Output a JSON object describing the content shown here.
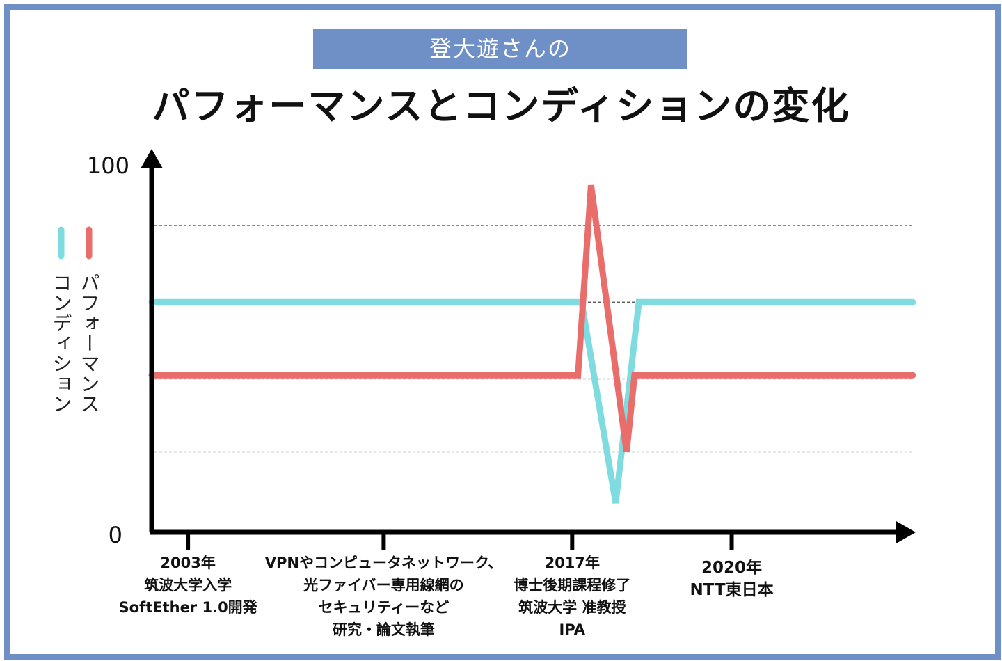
{
  "subtitle": "登大遊さんの",
  "title": "パフォーマンスとコンディションの変化",
  "chart_data": {
    "type": "line",
    "ylim": [
      0,
      100
    ],
    "y_tick_labels": [
      "0",
      "100"
    ],
    "grid": "dashed horizontal lines at 22, 42, 63, 84",
    "x_labels": [
      {
        "lines": [
          "2003年",
          "筑波大学入学",
          "SoftEther 1.0開発"
        ]
      },
      {
        "lines": [
          "VPNやコンピュータネットワーク、",
          "光ファイバー専用線網の",
          "セキュリティーなど",
          "研究・論文執筆"
        ]
      },
      {
        "lines": [
          "2017年",
          "博士後期課程修了",
          "筑波大学 准教授",
          "IPA"
        ]
      },
      {
        "lines": [
          "2020年",
          "NTT東日本"
        ]
      }
    ],
    "x_ticks": [
      0.5,
      3.2,
      5.8,
      8.0
    ],
    "xlim": [
      0,
      10.5
    ],
    "series": [
      {
        "name": "コンディション",
        "color": "#7edbe0",
        "points": [
          [
            0,
            63
          ],
          [
            5.93,
            63
          ],
          [
            6.4,
            8
          ],
          [
            6.72,
            63
          ],
          [
            10.5,
            63
          ]
        ]
      },
      {
        "name": "パフォーマンス",
        "color": "#e96d6b",
        "points": [
          [
            0,
            43
          ],
          [
            5.88,
            43
          ],
          [
            6.06,
            95
          ],
          [
            6.55,
            22
          ],
          [
            6.66,
            43
          ],
          [
            10.5,
            43
          ]
        ]
      }
    ],
    "legend_position": "left"
  }
}
